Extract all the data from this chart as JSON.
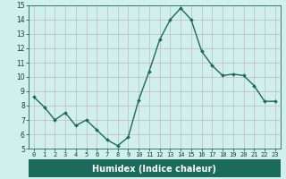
{
  "x": [
    0,
    1,
    2,
    3,
    4,
    5,
    6,
    7,
    8,
    9,
    10,
    11,
    12,
    13,
    14,
    15,
    16,
    17,
    18,
    19,
    20,
    21,
    22,
    23
  ],
  "y": [
    8.6,
    7.9,
    7.0,
    7.5,
    6.6,
    7.0,
    6.3,
    5.6,
    5.2,
    5.8,
    8.4,
    10.4,
    12.6,
    14.0,
    14.8,
    14.0,
    11.8,
    10.8,
    10.1,
    10.2,
    10.1,
    9.4,
    8.3,
    8.3
  ],
  "xlabel": "Humidex (Indice chaleur)",
  "ylim": [
    5,
    15
  ],
  "xlim": [
    -0.5,
    23.5
  ],
  "yticks": [
    5,
    6,
    7,
    8,
    9,
    10,
    11,
    12,
    13,
    14,
    15
  ],
  "xticks": [
    0,
    1,
    2,
    3,
    4,
    5,
    6,
    7,
    8,
    9,
    10,
    11,
    12,
    13,
    14,
    15,
    16,
    17,
    18,
    19,
    20,
    21,
    22,
    23
  ],
  "line_color": "#1a6b5a",
  "bg_color": "#cff0ec",
  "grid_color_major": "#b8d4d0",
  "grid_color_minor": "#d4b8bc",
  "xlabel_bg": "#1a6b5a",
  "xlabel_fg": "#ffffff",
  "tick_color": "#1a3a30",
  "spine_color": "#1a6b5a"
}
